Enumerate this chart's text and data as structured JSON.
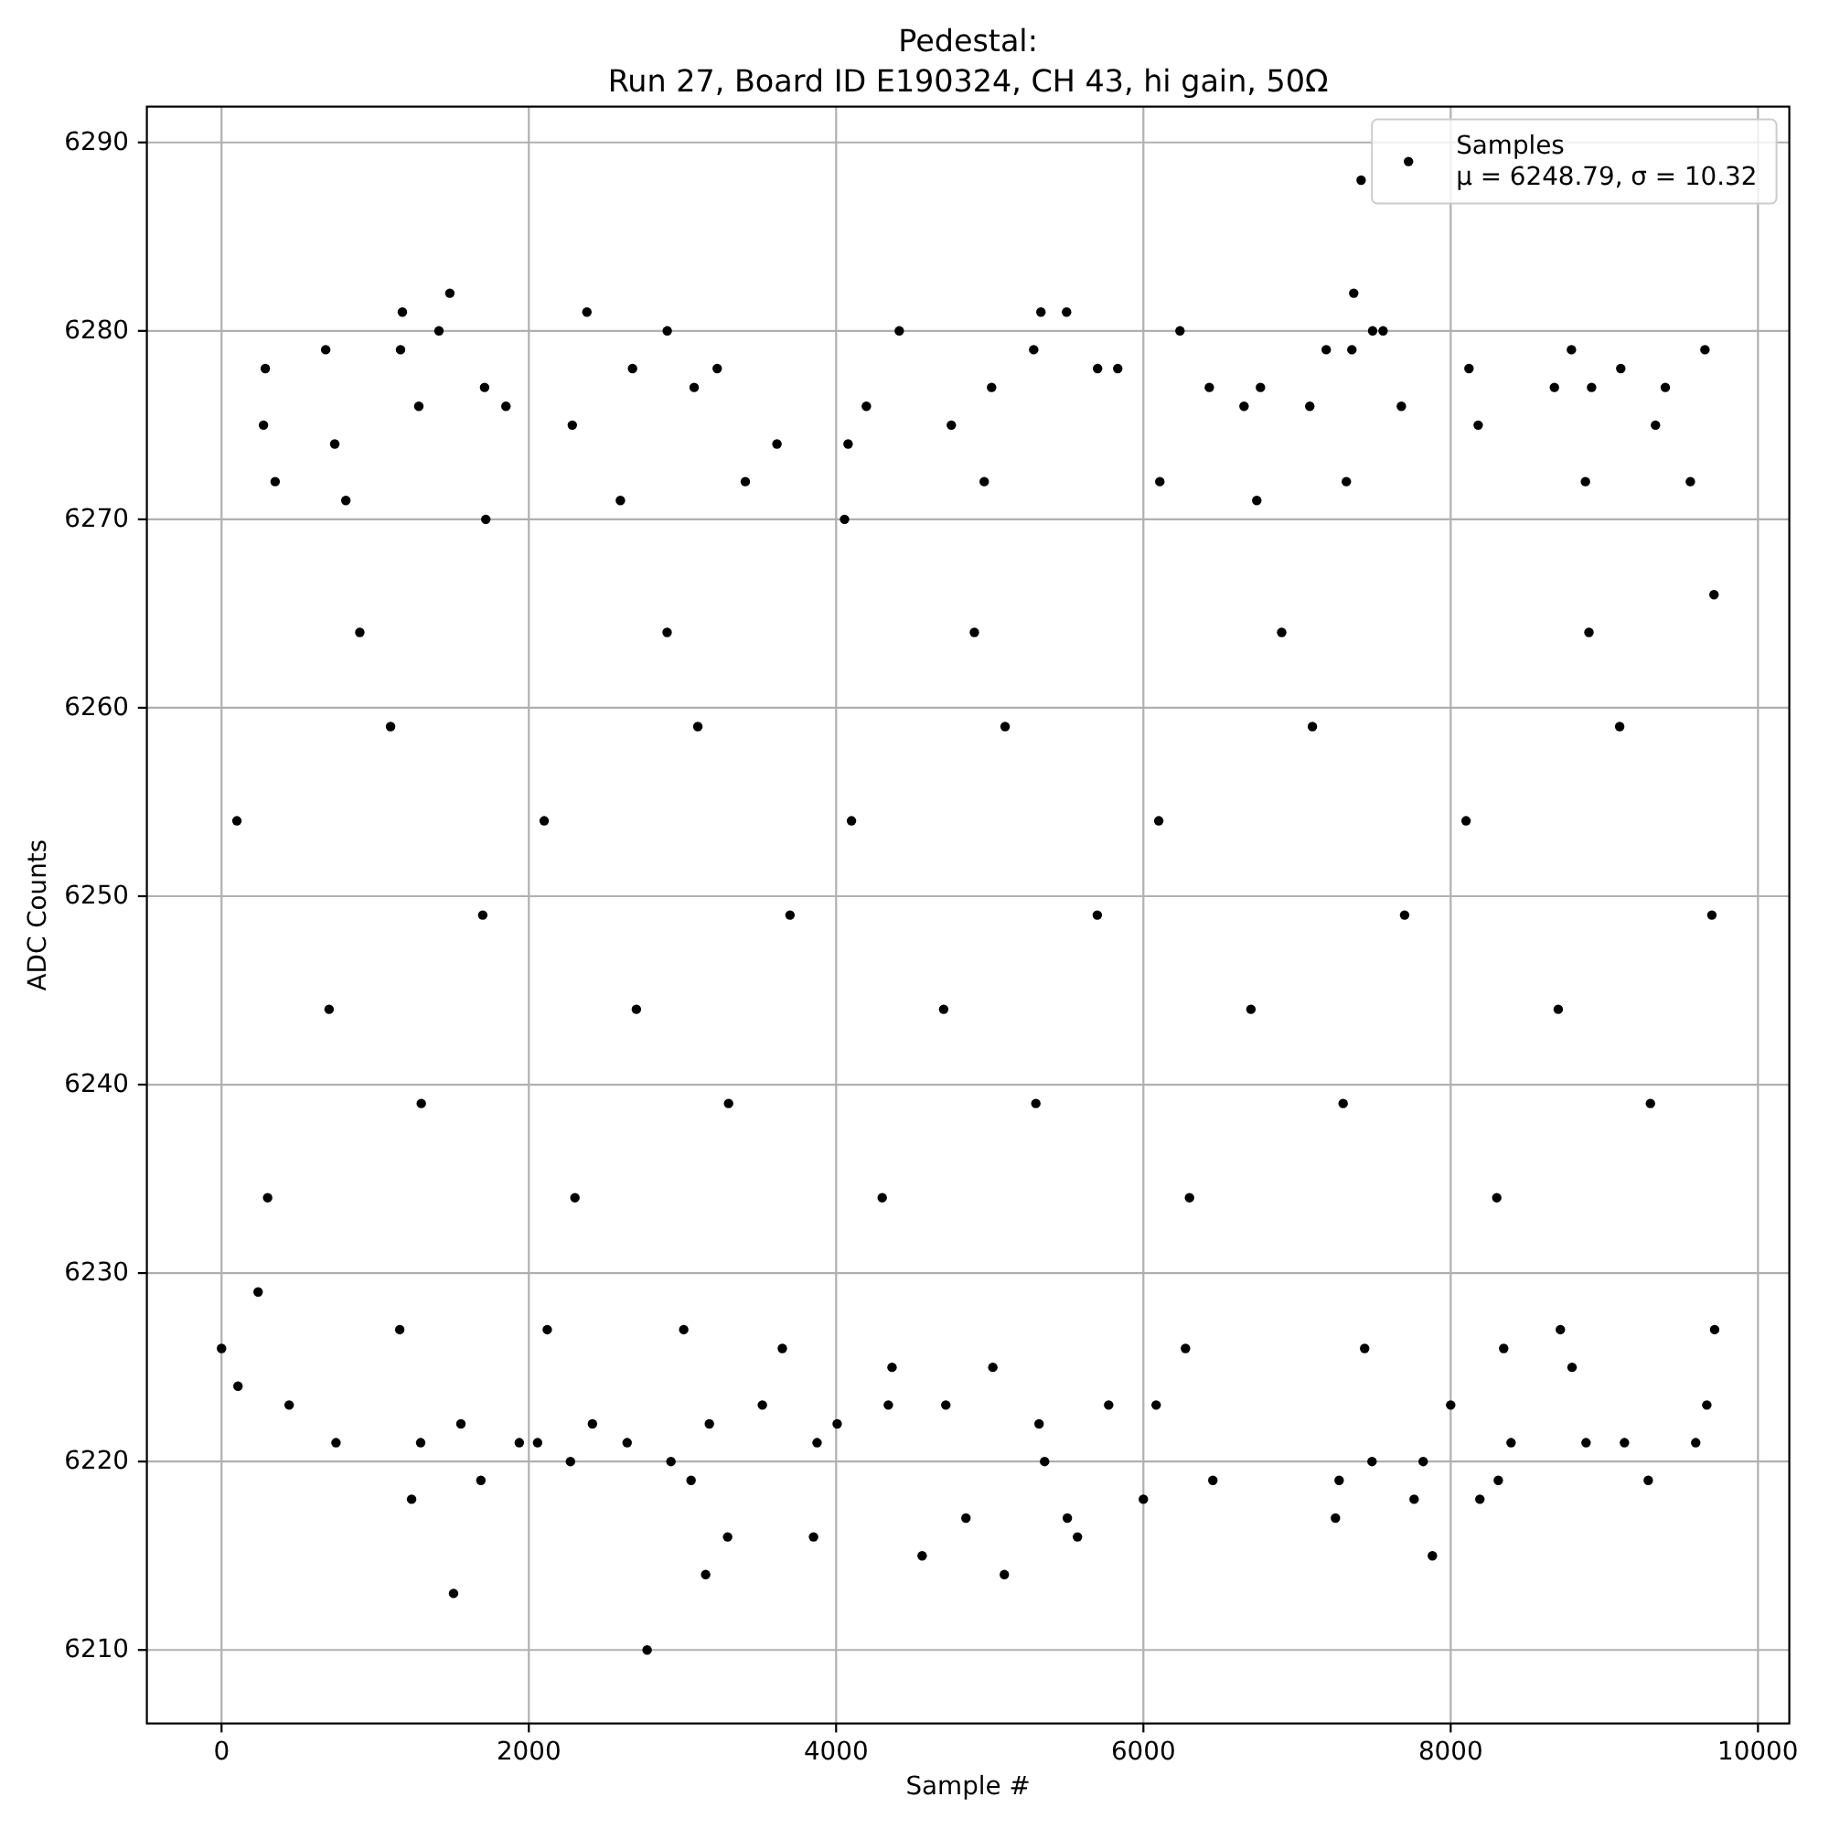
{
  "chart_data": {
    "type": "scatter",
    "title": "Pedestal:\nRun 27, Board ID E190324, CH 43, hi gain, 50Ω",
    "xlabel": "Sample #",
    "ylabel": "ADC Counts",
    "xlim": [
      -486,
      10204
    ],
    "ylim": [
      6206.1,
      6291.9
    ],
    "xticks": [
      0,
      2000,
      4000,
      6000,
      8000,
      10000
    ],
    "yticks": [
      6210,
      6220,
      6230,
      6240,
      6250,
      6260,
      6270,
      6280,
      6290
    ],
    "grid": true,
    "legend": "top right",
    "marker": "circle",
    "series": [
      {
        "name": "Samples\nμ = 6248.79, σ = 10.32",
        "color": "#000000",
        "x": [
          273,
          285,
          678,
          737,
          1165,
          1177,
          1284,
          1415,
          1486,
          1712,
          1851,
          2283,
          2378,
          2675,
          2901,
          3076,
          3226,
          3615,
          4078,
          4197,
          4411,
          4750,
          5012,
          5286,
          5333,
          5500,
          5702,
          5833,
          6238,
          6429,
          6655,
          6762,
          7083,
          7190,
          7357,
          7369,
          7417,
          7492,
          7560,
          7679,
          8119,
          8179,
          8675,
          8786,
          8917,
          9107,
          9333,
          9397,
          9655,
          349,
          809,
          1720,
          2596,
          3409,
          4055,
          4964,
          6107,
          6738,
          7321,
          8877,
          9560,
          9714,
          0,
          107,
          440,
          745,
          1237,
          1296,
          1510,
          1558,
          1688,
          1938,
          2057,
          2271,
          2414,
          2640,
          2770,
          2925,
          3056,
          3151,
          3175,
          3294,
          3520,
          3853,
          3876,
          4007,
          4340,
          4560,
          4714,
          4845,
          5095,
          5321,
          5357,
          5505,
          5571,
          5774,
          6000,
          6083,
          6452,
          7250,
          7274,
          7488,
          7762,
          7821,
          7881,
          8000,
          8190,
          8310,
          8393,
          8881,
          9131,
          9286,
          9595,
          9667,
          9718,
          238,
          1160,
          2120,
          3008,
          3650,
          4364,
          5020,
          6274,
          7440,
          8345,
          8714,
          8790,
          300,
          2300,
          4300,
          6300,
          8300,
          1300,
          3300,
          5300,
          7300,
          9300,
          700,
          2700,
          4700,
          6700,
          8700,
          1700,
          3700,
          5700,
          7700,
          9700,
          100,
          2100,
          4100,
          6100,
          8100,
          1100,
          3100,
          5100,
          7100,
          9100,
          900,
          2900,
          4900,
          6900,
          8900
        ],
        "values": [
          6275,
          6278,
          6279,
          6274,
          6279,
          6281,
          6276,
          6280,
          6282,
          6277,
          6276,
          6275,
          6281,
          6278,
          6280,
          6277,
          6278,
          6274,
          6274,
          6276,
          6280,
          6275,
          6277,
          6279,
          6281,
          6281,
          6278,
          6278,
          6280,
          6277,
          6276,
          6277,
          6276,
          6279,
          6279,
          6282,
          6288,
          6280,
          6280,
          6276,
          6278,
          6275,
          6277,
          6279,
          6277,
          6278,
          6275,
          6277,
          6279,
          6272,
          6271,
          6270,
          6271,
          6272,
          6270,
          6272,
          6272,
          6271,
          6272,
          6272,
          6272,
          6266,
          6226,
          6224,
          6223,
          6221,
          6218,
          6221,
          6213,
          6222,
          6219,
          6221,
          6221,
          6220,
          6222,
          6221,
          6210,
          6220,
          6219,
          6214,
          6222,
          6216,
          6223,
          6216,
          6221,
          6222,
          6223,
          6215,
          6223,
          6217,
          6214,
          6222,
          6220,
          6217,
          6216,
          6223,
          6218,
          6223,
          6219,
          6217,
          6219,
          6220,
          6218,
          6220,
          6215,
          6223,
          6218,
          6219,
          6221,
          6221,
          6221,
          6219,
          6221,
          6223,
          6227,
          6229,
          6227,
          6227,
          6227,
          6226,
          6225,
          6225,
          6226,
          6226,
          6226,
          6227,
          6225,
          6234,
          6234,
          6234,
          6234,
          6234,
          6239,
          6239,
          6239,
          6239,
          6239,
          6244,
          6244,
          6244,
          6244,
          6244,
          6249,
          6249,
          6249,
          6249,
          6249,
          6254,
          6254,
          6254,
          6254,
          6254,
          6259,
          6259,
          6259,
          6259,
          6259,
          6264,
          6264,
          6264,
          6264,
          6264
        ]
      }
    ]
  }
}
